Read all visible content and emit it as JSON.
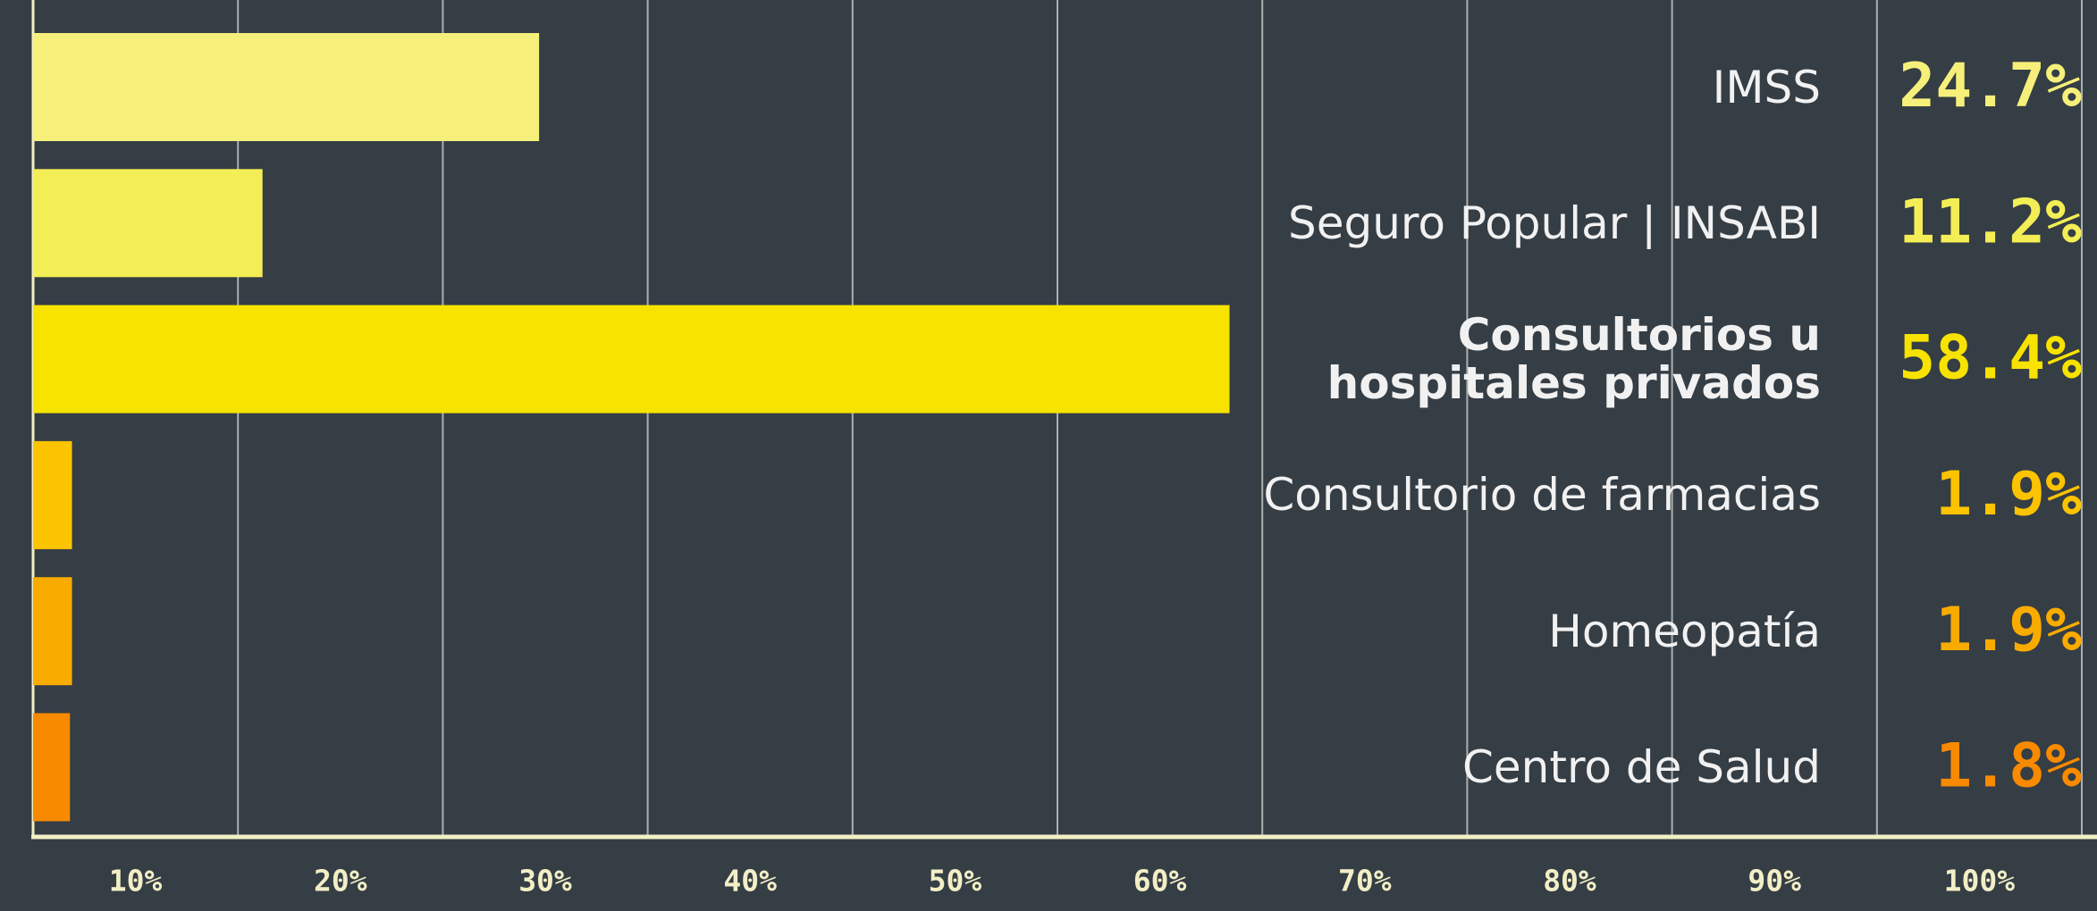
{
  "chart_data": {
    "type": "bar",
    "orientation": "horizontal",
    "categories": [
      "IMSS",
      "Seguro Popular | INSABI",
      "Consultorios u\nhospitales privados",
      "Consultorio de farmacias",
      "Homeopatía",
      "Centro de Salud"
    ],
    "values": [
      24.7,
      11.2,
      58.4,
      1.9,
      1.9,
      1.8
    ],
    "value_labels": [
      "24.7%",
      "11.2%",
      "58.4%",
      "1.9%",
      "1.9%",
      "1.8%"
    ],
    "colors": [
      "#f6f07a",
      "#f3ee55",
      "#f8e300",
      "#fbc300",
      "#f9ab00",
      "#f88a00"
    ],
    "xlim": [
      0,
      100
    ],
    "xticks": [
      {
        "value": 10,
        "label": "10%"
      },
      {
        "value": 20,
        "label": "20%"
      },
      {
        "value": 30,
        "label": "30%"
      },
      {
        "value": 40,
        "label": "40%"
      },
      {
        "value": 50,
        "label": "50%"
      },
      {
        "value": 60,
        "label": "60%"
      },
      {
        "value": 70,
        "label": "70%"
      },
      {
        "value": 80,
        "label": "80%"
      },
      {
        "value": 90,
        "label": "90%"
      },
      {
        "value": 100,
        "label": "100%"
      }
    ],
    "grid": true
  }
}
